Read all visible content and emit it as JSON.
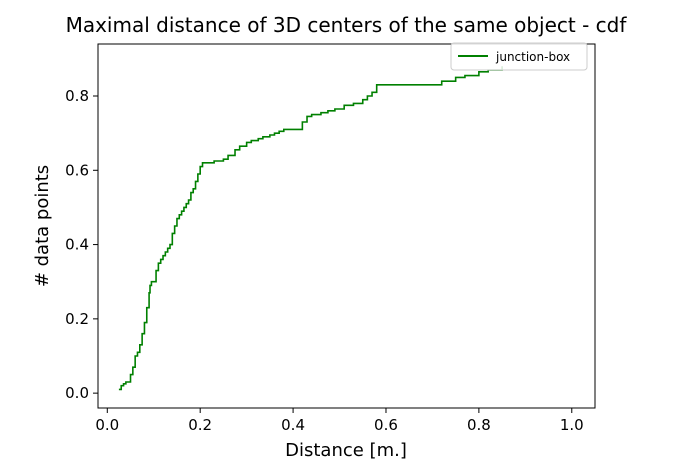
{
  "chart_data": {
    "type": "line",
    "title": "Maximal distance of 3D centers of the same object - cdf",
    "xlabel": "Distance [m.]",
    "ylabel": "# data points",
    "xlim": [
      -0.02,
      1.05
    ],
    "ylim": [
      -0.04,
      0.94
    ],
    "xticks": [
      0.0,
      0.2,
      0.4,
      0.6,
      0.8,
      1.0
    ],
    "xtick_labels": [
      "0.0",
      "0.2",
      "0.4",
      "0.6",
      "0.8",
      "1.0"
    ],
    "yticks": [
      0.0,
      0.2,
      0.4,
      0.6,
      0.8
    ],
    "ytick_labels": [
      "0.0",
      "0.2",
      "0.4",
      "0.6",
      "0.8"
    ],
    "grid": false,
    "legend_position": "top-right",
    "series": [
      {
        "name": "junction-box",
        "color": "#008000",
        "drawstyle": "steps-post",
        "x": [
          0.025,
          0.03,
          0.035,
          0.04,
          0.05,
          0.055,
          0.06,
          0.065,
          0.07,
          0.075,
          0.08,
          0.085,
          0.09,
          0.092,
          0.095,
          0.1,
          0.105,
          0.11,
          0.115,
          0.12,
          0.125,
          0.13,
          0.135,
          0.14,
          0.145,
          0.15,
          0.155,
          0.16,
          0.165,
          0.17,
          0.175,
          0.18,
          0.185,
          0.19,
          0.195,
          0.2,
          0.205,
          0.21,
          0.215,
          0.23,
          0.25,
          0.26,
          0.275,
          0.285,
          0.3,
          0.31,
          0.325,
          0.335,
          0.35,
          0.36,
          0.37,
          0.38,
          0.39,
          0.4,
          0.42,
          0.43,
          0.44,
          0.46,
          0.475,
          0.49,
          0.51,
          0.53,
          0.55,
          0.56,
          0.57,
          0.58,
          0.62,
          0.7,
          0.72,
          0.75,
          0.77,
          0.8,
          0.82,
          0.85
        ],
        "y": [
          0.01,
          0.02,
          0.025,
          0.03,
          0.05,
          0.07,
          0.1,
          0.11,
          0.13,
          0.16,
          0.19,
          0.23,
          0.27,
          0.29,
          0.3,
          0.3,
          0.33,
          0.35,
          0.36,
          0.37,
          0.38,
          0.39,
          0.4,
          0.43,
          0.45,
          0.47,
          0.48,
          0.49,
          0.5,
          0.51,
          0.52,
          0.54,
          0.55,
          0.57,
          0.59,
          0.61,
          0.62,
          0.62,
          0.62,
          0.625,
          0.63,
          0.64,
          0.655,
          0.665,
          0.675,
          0.68,
          0.685,
          0.69,
          0.695,
          0.7,
          0.705,
          0.71,
          0.71,
          0.71,
          0.73,
          0.745,
          0.75,
          0.755,
          0.76,
          0.765,
          0.775,
          0.78,
          0.79,
          0.8,
          0.81,
          0.83,
          0.83,
          0.83,
          0.84,
          0.85,
          0.855,
          0.865,
          0.87,
          0.88
        ]
      }
    ]
  }
}
